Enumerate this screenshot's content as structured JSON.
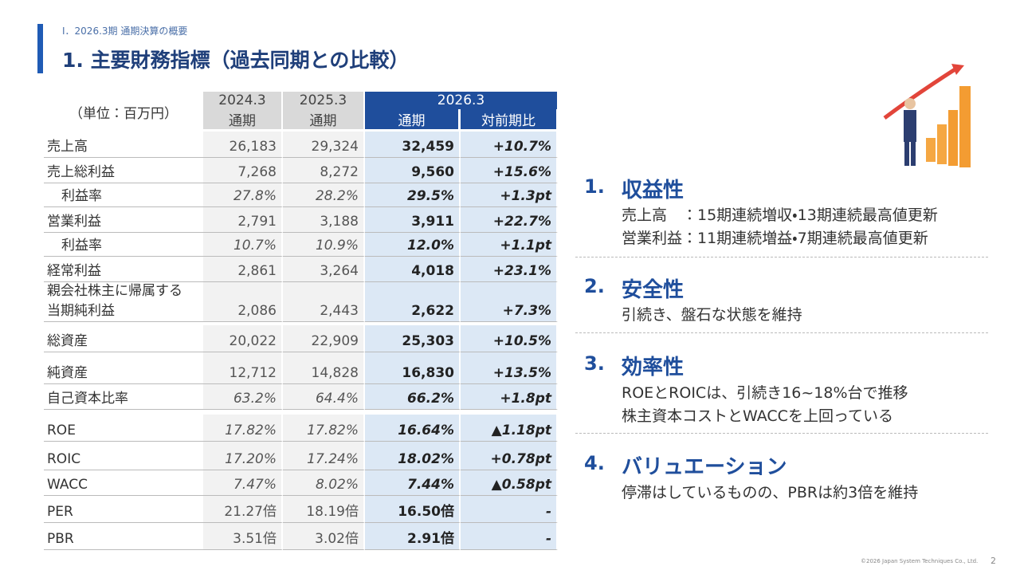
{
  "header": {
    "section": "Ⅰ．2026.3期 通期決算の概要",
    "title": "1. 主要財務指標（過去同期との比較）"
  },
  "table": {
    "unit": "（単位：百万円）",
    "years": [
      "2024.3",
      "2025.3",
      "2026.3"
    ],
    "subheaders": [
      "通期",
      "通期",
      "通期",
      "対前期比"
    ],
    "rows": [
      {
        "label": "売上高",
        "cells": [
          "26,183",
          "29,324",
          "32,459",
          "+10.7%"
        ]
      },
      {
        "label": "売上総利益",
        "cells": [
          "7,268",
          "8,272",
          "9,560",
          "+15.6%"
        ]
      },
      {
        "label": "利益率",
        "cells": [
          "27.8%",
          "28.2%",
          "29.5%",
          "+1.3pt"
        ]
      },
      {
        "label": "営業利益",
        "cells": [
          "2,791",
          "3,188",
          "3,911",
          "+22.7%"
        ]
      },
      {
        "label": "利益率",
        "cells": [
          "10.7%",
          "10.9%",
          "12.0%",
          "+1.1pt"
        ]
      },
      {
        "label": "経常利益",
        "cells": [
          "2,861",
          "3,264",
          "4,018",
          "+23.1%"
        ]
      },
      {
        "label": [
          "親会社株主に帰属する",
          "当期純利益"
        ],
        "cells": [
          "2,086",
          "2,443",
          "2,622",
          "+7.3%"
        ]
      },
      {
        "label": "総資産",
        "cells": [
          "20,022",
          "22,909",
          "25,303",
          "+10.5%"
        ]
      },
      {
        "label": "純資産",
        "cells": [
          "12,712",
          "14,828",
          "16,830",
          "+13.5%"
        ]
      },
      {
        "label": "自己資本比率",
        "cells": [
          "63.2%",
          "64.4%",
          "66.2%",
          "+1.8pt"
        ]
      },
      {
        "label": "ROE",
        "cells": [
          "17.82%",
          "17.82%",
          "16.64%",
          "▲1.18pt"
        ]
      },
      {
        "label": "ROIC",
        "cells": [
          "17.20%",
          "17.24%",
          "18.02%",
          "+0.78pt"
        ]
      },
      {
        "label": "WACC",
        "cells": [
          "7.47%",
          "8.02%",
          "7.44%",
          "▲0.58pt"
        ]
      },
      {
        "label": "PER",
        "cells": [
          "21.27倍",
          "18.19倍",
          "16.50倍",
          "-"
        ]
      },
      {
        "label": "PBR",
        "cells": [
          "3.51倍",
          "3.02倍",
          "2.91倍",
          "-"
        ]
      }
    ]
  },
  "sections": [
    {
      "number": "1.",
      "title": "収益性",
      "lines": [
        "売上高　：15期連続増収・13期連続最高値更新",
        "営業利益：11期連続増益・7期連続最高値更新"
      ]
    },
    {
      "number": "2.",
      "title": "安全性",
      "lines": [
        "引続き、盤石な状態を維持"
      ]
    },
    {
      "number": "3.",
      "title": "効率性",
      "lines": [
        "ROEとROICは、引続き16~18%台で推移",
        "株主資本コストとWACCを上回っている"
      ]
    },
    {
      "number": "4.",
      "title": "バリュエーション",
      "lines": [
        "停滞はしているものの、PBRは約3倍を維持"
      ]
    }
  ],
  "footer": {
    "copyright": "©2026 Japan System Techniques Co., Ltd.",
    "page": "2"
  }
}
